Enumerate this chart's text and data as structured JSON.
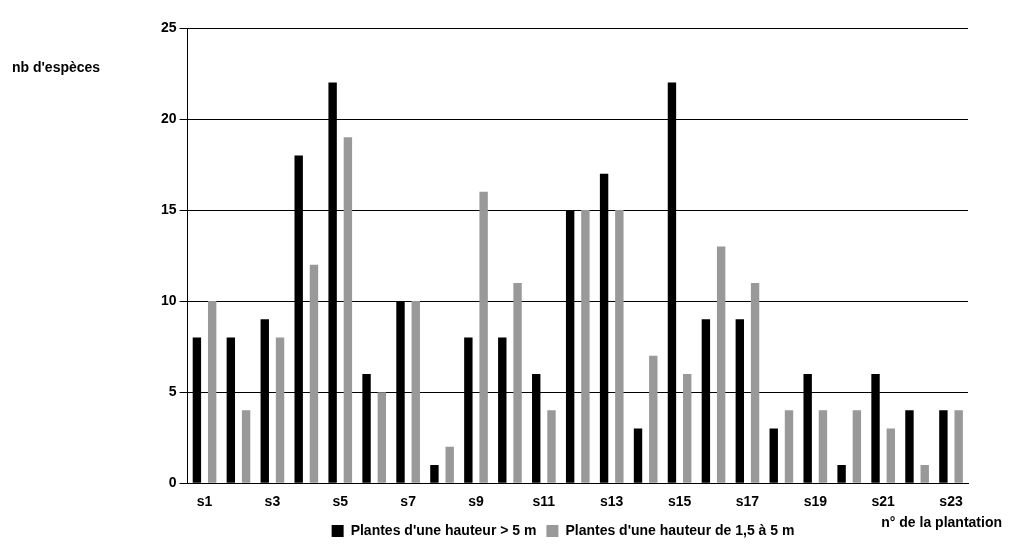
{
  "chart_data": {
    "type": "bar",
    "ylabel": "nb d'espèces",
    "xlabel": "n° de la plantation",
    "categories": [
      "s1",
      null,
      "s3",
      null,
      "s5",
      null,
      "s7",
      null,
      "s9",
      null,
      "s11",
      null,
      "s13",
      null,
      "s15",
      null,
      "s17",
      null,
      "s19",
      null,
      "s21",
      null,
      "s23"
    ],
    "series": [
      {
        "name": "Plantes d'une hauteur > 5 m",
        "color": "#000000",
        "values": [
          8,
          8,
          9,
          18,
          22,
          6,
          10,
          1,
          8,
          8,
          6,
          15,
          17,
          3,
          22,
          9,
          9,
          3,
          6,
          1,
          6,
          4,
          4
        ]
      },
      {
        "name": "Plantes d'une hauteur de 1,5 à 5 m",
        "color": "#999999",
        "values": [
          10,
          4,
          8,
          12,
          19,
          5,
          10,
          2,
          16,
          11,
          4,
          15,
          15,
          7,
          6,
          13,
          11,
          4,
          4,
          4,
          3,
          1,
          4
        ]
      }
    ],
    "ylim": [
      0,
      25
    ],
    "yticks": [
      0,
      5,
      10,
      15,
      20,
      25
    ],
    "grid": "y",
    "legend": "bottom"
  }
}
